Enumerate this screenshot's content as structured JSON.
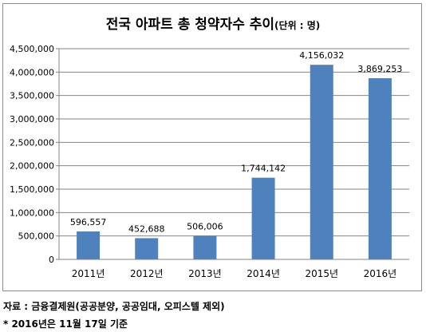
{
  "chart_data": {
    "type": "bar",
    "title": "전국 아파트 총 청약자수 추이",
    "title_unit": "(단위 : 명)",
    "categories": [
      "2011년",
      "2012년",
      "2013년",
      "2014년",
      "2015년",
      "2016년"
    ],
    "values": [
      596557,
      452688,
      506006,
      1744142,
      4156032,
      3869253
    ],
    "value_labels": [
      "596,557",
      "452,688",
      "506,006",
      "1,744,142",
      "4,156,032",
      "3,869,253"
    ],
    "ylim": [
      0,
      4500000
    ],
    "yticks": [
      0,
      500000,
      1000000,
      1500000,
      2000000,
      2500000,
      3000000,
      3500000,
      4000000,
      4500000
    ],
    "ytick_labels": [
      "0",
      "500,000",
      "1,000,000",
      "1,500,000",
      "2,000,000",
      "2,500,000",
      "3,000,000",
      "3,500,000",
      "4,000,000",
      "4,500,000"
    ],
    "grid": true,
    "legend": false,
    "bar_color": "#4f81bd",
    "grid_color": "#868686"
  },
  "notes": {
    "source": "자료 : 금융결제원(공공분양, 공공임대, 오피스텔 제외)",
    "date": "* 2016년은 11월 17일 기준"
  }
}
